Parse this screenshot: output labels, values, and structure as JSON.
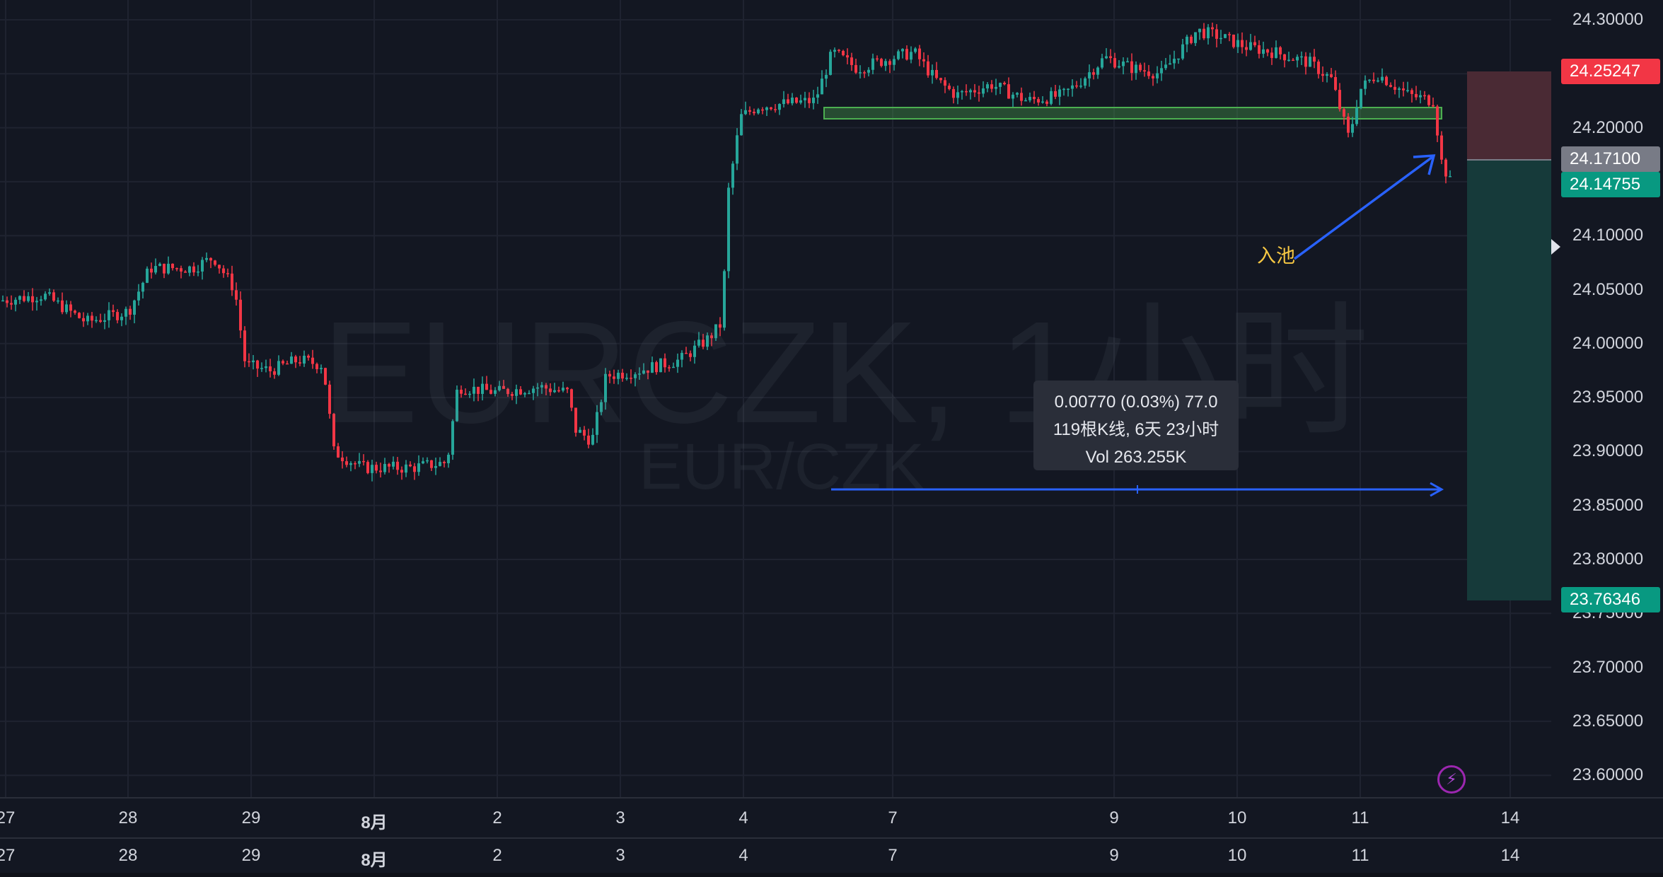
{
  "watermark": {
    "symbol": "EURCZK, 1小时",
    "pair": "EUR/CZK"
  },
  "price_scale": [
    "24.30000",
    "24.25000",
    "24.20000",
    "24.15000",
    "24.10000",
    "24.05000",
    "24.00000",
    "23.95000",
    "23.90000",
    "23.85000",
    "23.80000",
    "23.75000",
    "23.70000",
    "23.65000",
    "23.60000"
  ],
  "price_tags": {
    "stop": "24.25247",
    "entry": "24.17100",
    "current": "24.14755",
    "target": "23.76346"
  },
  "time_axis": [
    "27",
    "28",
    "29",
    "8月",
    "2",
    "3",
    "4",
    "7",
    "9",
    "10",
    "11",
    "14"
  ],
  "tooltip": {
    "line1": "0.00770 (0.03%) 77.0",
    "line2": "119根K线, 6天 23小时",
    "line3": "Vol 263.255K"
  },
  "annotation": "入池",
  "colors": {
    "up": "#26a69a",
    "down": "#f23645",
    "background": "#131722",
    "grid": "#1f2330",
    "arrow": "#2962ff",
    "annotation": "#f7c843"
  },
  "icons": {
    "alert": "lightning-icon"
  }
}
